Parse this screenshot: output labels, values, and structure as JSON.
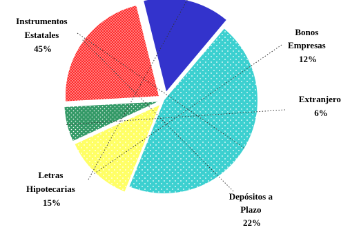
{
  "chart_data": {
    "type": "pie",
    "title": "",
    "exploded": true,
    "labels": [
      {
        "lines": [
          "Instrumentos",
          "Estatales"
        ],
        "pct_text": "45%"
      },
      {
        "lines": [
          "Bonos",
          "Empresas"
        ],
        "pct_text": "12%"
      },
      {
        "lines": [
          "Extranjero"
        ],
        "pct_text": "6%"
      },
      {
        "lines": [
          "Depósitos a",
          "Plazo"
        ],
        "pct_text": "22%"
      },
      {
        "lines": [
          "Letras",
          "Hipotecarias"
        ],
        "pct_text": "15%"
      }
    ],
    "slices": [
      {
        "name": "Instrumentos Estatales",
        "value": 45,
        "color": "#3cd0d0",
        "pattern": "dots-white"
      },
      {
        "name": "Bonos Empresas",
        "value": 12,
        "color": "#ffff66",
        "pattern": "dots-white"
      },
      {
        "name": "Extranjero",
        "value": 6,
        "color": "#339966",
        "pattern": "dots-white"
      },
      {
        "name": "Depósitos a Plazo",
        "value": 22,
        "color": "#ff2a2a",
        "pattern": "dots-white"
      },
      {
        "name": "Letras Hipotecarias",
        "value": 15,
        "color": "#3333cc",
        "pattern": "solid"
      }
    ]
  }
}
